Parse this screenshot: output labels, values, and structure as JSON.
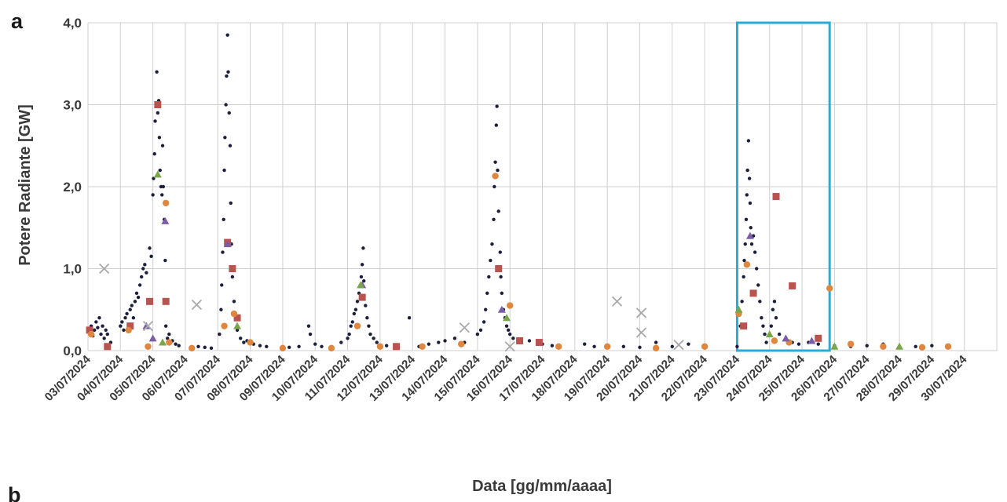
{
  "panels": {
    "a": "a",
    "b": "b"
  },
  "chart_data": {
    "type": "scatter",
    "xlabel": "Data [gg/mm/aaaa]",
    "ylabel": "Potere Radiante [GW]",
    "ylim": [
      0,
      4
    ],
    "yticks": [
      "0,0",
      "1,0",
      "2,0",
      "3,0",
      "4,0"
    ],
    "ytick_values": [
      0,
      1,
      2,
      3,
      4
    ],
    "x_tick_labels": [
      "03/07/2024",
      "04/07/2024",
      "05/07/2024",
      "06/07/2024",
      "07/07/2024",
      "08/07/2024",
      "09/07/2024",
      "10/07/2024",
      "11/07/2024",
      "12/07/2024",
      "13/07/2024",
      "14/07/2024",
      "15/07/2024",
      "16/07/2024",
      "17/07/2024",
      "18/07/2024",
      "19/07/2024",
      "20/07/2024",
      "21/07/2024",
      "22/07/2024",
      "23/07/2024",
      "24/07/2024",
      "25/07/2024",
      "26/07/2024",
      "27/07/2024",
      "28/07/2024",
      "29/07/2024",
      "30/07/2024"
    ],
    "grid": true,
    "legend": "none",
    "highlight_box": {
      "x_start": 23.0,
      "x_end": 25.85,
      "y_start": 0,
      "y_end": 4.0,
      "color": "#29abd8"
    },
    "series": [
      {
        "marker": "circle",
        "color": "#1c1f3b",
        "points": [
          [
            3.05,
            0.22
          ],
          [
            3.1,
            0.3
          ],
          [
            3.15,
            0.18
          ],
          [
            3.2,
            0.25
          ],
          [
            3.25,
            0.35
          ],
          [
            3.3,
            0.28
          ],
          [
            3.35,
            0.4
          ],
          [
            3.4,
            0.2
          ],
          [
            3.45,
            0.3
          ],
          [
            3.5,
            0.15
          ],
          [
            3.55,
            0.25
          ],
          [
            3.6,
            0.2
          ],
          [
            3.7,
            0.1
          ],
          [
            4.0,
            0.3
          ],
          [
            4.05,
            0.35
          ],
          [
            4.1,
            0.25
          ],
          [
            4.15,
            0.4
          ],
          [
            4.2,
            0.45
          ],
          [
            4.25,
            0.3
          ],
          [
            4.3,
            0.5
          ],
          [
            4.35,
            0.55
          ],
          [
            4.4,
            0.4
          ],
          [
            4.45,
            0.6
          ],
          [
            4.5,
            0.7
          ],
          [
            4.55,
            0.65
          ],
          [
            4.6,
            0.8
          ],
          [
            4.65,
            0.9
          ],
          [
            4.7,
            1.0
          ],
          [
            4.75,
            1.05
          ],
          [
            4.8,
            0.95
          ],
          [
            4.9,
            1.25
          ],
          [
            4.95,
            1.15
          ],
          [
            5.0,
            1.9
          ],
          [
            5.02,
            2.1
          ],
          [
            5.05,
            2.4
          ],
          [
            5.07,
            2.8
          ],
          [
            5.1,
            3.0
          ],
          [
            5.12,
            3.4
          ],
          [
            5.15,
            2.9
          ],
          [
            5.18,
            3.05
          ],
          [
            5.2,
            2.6
          ],
          [
            5.22,
            2.2
          ],
          [
            5.25,
            2.0
          ],
          [
            5.28,
            1.9
          ],
          [
            5.3,
            2.5
          ],
          [
            5.32,
            2.0
          ],
          [
            5.35,
            1.6
          ],
          [
            5.38,
            1.1
          ],
          [
            5.4,
            0.3
          ],
          [
            5.45,
            0.15
          ],
          [
            5.5,
            0.2
          ],
          [
            5.55,
            0.1
          ],
          [
            5.6,
            0.12
          ],
          [
            5.7,
            0.08
          ],
          [
            5.8,
            0.06
          ],
          [
            6.2,
            0.04
          ],
          [
            6.4,
            0.05
          ],
          [
            6.6,
            0.04
          ],
          [
            6.8,
            0.03
          ],
          [
            7.05,
            0.2
          ],
          [
            7.1,
            0.5
          ],
          [
            7.12,
            0.8
          ],
          [
            7.15,
            1.2
          ],
          [
            7.18,
            1.6
          ],
          [
            7.2,
            2.2
          ],
          [
            7.22,
            2.6
          ],
          [
            7.25,
            3.0
          ],
          [
            7.27,
            3.35
          ],
          [
            7.3,
            3.85
          ],
          [
            7.32,
            3.4
          ],
          [
            7.35,
            2.9
          ],
          [
            7.38,
            2.5
          ],
          [
            7.4,
            1.8
          ],
          [
            7.42,
            1.3
          ],
          [
            7.45,
            0.9
          ],
          [
            7.5,
            0.6
          ],
          [
            7.55,
            0.4
          ],
          [
            7.6,
            0.25
          ],
          [
            7.7,
            0.15
          ],
          [
            7.8,
            0.1
          ],
          [
            7.9,
            0.12
          ],
          [
            8.1,
            0.08
          ],
          [
            8.3,
            0.06
          ],
          [
            8.5,
            0.05
          ],
          [
            9.2,
            0.04
          ],
          [
            9.5,
            0.05
          ],
          [
            9.8,
            0.3
          ],
          [
            9.85,
            0.2
          ],
          [
            10.0,
            0.08
          ],
          [
            10.2,
            0.05
          ],
          [
            10.5,
            0.04
          ],
          [
            10.8,
            0.1
          ],
          [
            11.0,
            0.15
          ],
          [
            11.05,
            0.2
          ],
          [
            11.1,
            0.3
          ],
          [
            11.15,
            0.35
          ],
          [
            11.2,
            0.45
          ],
          [
            11.25,
            0.5
          ],
          [
            11.3,
            0.6
          ],
          [
            11.35,
            0.7
          ],
          [
            11.4,
            0.8
          ],
          [
            11.42,
            0.9
          ],
          [
            11.45,
            1.05
          ],
          [
            11.48,
            1.25
          ],
          [
            11.5,
            0.85
          ],
          [
            11.55,
            0.55
          ],
          [
            11.6,
            0.4
          ],
          [
            11.65,
            0.3
          ],
          [
            11.7,
            0.2
          ],
          [
            11.8,
            0.15
          ],
          [
            11.9,
            0.1
          ],
          [
            12.2,
            0.06
          ],
          [
            12.5,
            0.05
          ],
          [
            12.9,
            0.4
          ],
          [
            13.2,
            0.05
          ],
          [
            13.5,
            0.08
          ],
          [
            13.8,
            0.1
          ],
          [
            14.0,
            0.12
          ],
          [
            14.3,
            0.15
          ],
          [
            14.6,
            0.1
          ],
          [
            15.0,
            0.2
          ],
          [
            15.1,
            0.25
          ],
          [
            15.2,
            0.35
          ],
          [
            15.25,
            0.5
          ],
          [
            15.3,
            0.7
          ],
          [
            15.35,
            0.9
          ],
          [
            15.4,
            1.1
          ],
          [
            15.45,
            1.3
          ],
          [
            15.5,
            1.6
          ],
          [
            15.52,
            2.0
          ],
          [
            15.55,
            2.3
          ],
          [
            15.58,
            2.75
          ],
          [
            15.6,
            2.98
          ],
          [
            15.62,
            2.2
          ],
          [
            15.65,
            1.7
          ],
          [
            15.7,
            1.2
          ],
          [
            15.72,
            0.9
          ],
          [
            15.75,
            0.7
          ],
          [
            15.8,
            0.5
          ],
          [
            15.85,
            0.4
          ],
          [
            15.9,
            0.3
          ],
          [
            15.95,
            0.25
          ],
          [
            16.0,
            0.2
          ],
          [
            16.1,
            0.15
          ],
          [
            16.3,
            0.1
          ],
          [
            16.6,
            0.12
          ],
          [
            17.0,
            0.08
          ],
          [
            17.3,
            0.06
          ],
          [
            18.3,
            0.08
          ],
          [
            18.6,
            0.05
          ],
          [
            19.0,
            0.06
          ],
          [
            19.5,
            0.05
          ],
          [
            20.0,
            0.04
          ],
          [
            20.5,
            0.1
          ],
          [
            21.0,
            0.05
          ],
          [
            21.5,
            0.08
          ],
          [
            22.0,
            0.06
          ],
          [
            23.0,
            0.05
          ],
          [
            23.1,
            0.3
          ],
          [
            23.15,
            0.6
          ],
          [
            23.2,
            0.9
          ],
          [
            23.22,
            1.1
          ],
          [
            23.25,
            1.3
          ],
          [
            23.28,
            1.6
          ],
          [
            23.3,
            1.9
          ],
          [
            23.32,
            2.2
          ],
          [
            23.35,
            2.56
          ],
          [
            23.38,
            2.1
          ],
          [
            23.4,
            1.8
          ],
          [
            23.42,
            1.5
          ],
          [
            23.45,
            1.3
          ],
          [
            23.5,
            1.4
          ],
          [
            23.55,
            1.2
          ],
          [
            23.6,
            1.0
          ],
          [
            23.65,
            0.8
          ],
          [
            23.7,
            0.6
          ],
          [
            23.75,
            0.4
          ],
          [
            23.8,
            0.3
          ],
          [
            23.85,
            0.2
          ],
          [
            23.9,
            0.1
          ],
          [
            24.0,
            0.2
          ],
          [
            24.05,
            0.3
          ],
          [
            24.1,
            0.5
          ],
          [
            24.15,
            0.6
          ],
          [
            24.2,
            0.4
          ],
          [
            24.3,
            0.2
          ],
          [
            24.5,
            0.15
          ],
          [
            24.7,
            0.1
          ],
          [
            24.9,
            0.08
          ],
          [
            25.2,
            0.1
          ],
          [
            25.5,
            0.08
          ],
          [
            26.0,
            0.06
          ],
          [
            26.5,
            0.05
          ],
          [
            27.0,
            0.06
          ],
          [
            27.5,
            0.08
          ],
          [
            28.0,
            0.05
          ],
          [
            28.5,
            0.05
          ],
          [
            29.0,
            0.06
          ]
        ]
      },
      {
        "marker": "square",
        "color": "#b9534f",
        "points": [
          [
            3.05,
            0.25
          ],
          [
            3.6,
            0.05
          ],
          [
            4.3,
            0.3
          ],
          [
            4.9,
            0.6
          ],
          [
            5.15,
            3.0
          ],
          [
            5.4,
            0.6
          ],
          [
            7.3,
            1.32
          ],
          [
            7.45,
            1.0
          ],
          [
            7.6,
            0.4
          ],
          [
            11.45,
            0.65
          ],
          [
            12.5,
            0.05
          ],
          [
            15.65,
            1.0
          ],
          [
            16.3,
            0.12
          ],
          [
            16.9,
            0.1
          ],
          [
            23.2,
            0.3
          ],
          [
            23.5,
            0.7
          ],
          [
            24.2,
            1.88
          ],
          [
            24.7,
            0.79
          ],
          [
            25.5,
            0.15
          ]
        ]
      },
      {
        "marker": "diamond",
        "color": "#e0873f",
        "points": [
          [
            3.1,
            0.2
          ],
          [
            4.25,
            0.25
          ],
          [
            4.85,
            0.05
          ],
          [
            5.4,
            1.8
          ],
          [
            5.5,
            0.1
          ],
          [
            6.2,
            0.03
          ],
          [
            7.2,
            0.3
          ],
          [
            7.5,
            0.45
          ],
          [
            8.0,
            0.1
          ],
          [
            9.0,
            0.03
          ],
          [
            10.5,
            0.03
          ],
          [
            11.3,
            0.3
          ],
          [
            12.0,
            0.05
          ],
          [
            13.3,
            0.05
          ],
          [
            14.5,
            0.08
          ],
          [
            15.55,
            2.13
          ],
          [
            16.0,
            0.55
          ],
          [
            17.5,
            0.05
          ],
          [
            19.0,
            0.05
          ],
          [
            20.5,
            0.03
          ],
          [
            22.0,
            0.05
          ],
          [
            23.05,
            0.45
          ],
          [
            23.3,
            1.05
          ],
          [
            24.15,
            0.12
          ],
          [
            24.6,
            0.1
          ],
          [
            25.85,
            0.76
          ],
          [
            26.5,
            0.08
          ],
          [
            27.5,
            0.05
          ],
          [
            28.7,
            0.04
          ],
          [
            29.5,
            0.05
          ]
        ]
      },
      {
        "marker": "triangle",
        "color": "#7b5ea7",
        "points": [
          [
            4.8,
            0.3
          ],
          [
            5.0,
            0.15
          ],
          [
            5.38,
            1.58
          ],
          [
            7.3,
            1.3
          ],
          [
            11.45,
            0.8
          ],
          [
            15.75,
            0.5
          ],
          [
            23.4,
            1.4
          ],
          [
            24.5,
            0.15
          ],
          [
            25.3,
            0.12
          ]
        ]
      },
      {
        "marker": "triangle",
        "color": "#79a64a",
        "points": [
          [
            5.15,
            2.15
          ],
          [
            5.3,
            0.1
          ],
          [
            7.6,
            0.3
          ],
          [
            11.4,
            0.8
          ],
          [
            15.9,
            0.4
          ],
          [
            23.05,
            0.5
          ],
          [
            24.0,
            0.2
          ],
          [
            26.0,
            0.05
          ],
          [
            28.0,
            0.05
          ]
        ]
      },
      {
        "marker": "cross",
        "color": "#a9a9a9",
        "points": [
          [
            3.5,
            1.0
          ],
          [
            4.85,
            0.3
          ],
          [
            6.35,
            0.56
          ],
          [
            14.6,
            0.28
          ],
          [
            19.3,
            0.6
          ],
          [
            20.05,
            0.46
          ],
          [
            20.05,
            0.22
          ],
          [
            21.2,
            0.07
          ],
          [
            16.0,
            0.05
          ]
        ]
      }
    ]
  }
}
